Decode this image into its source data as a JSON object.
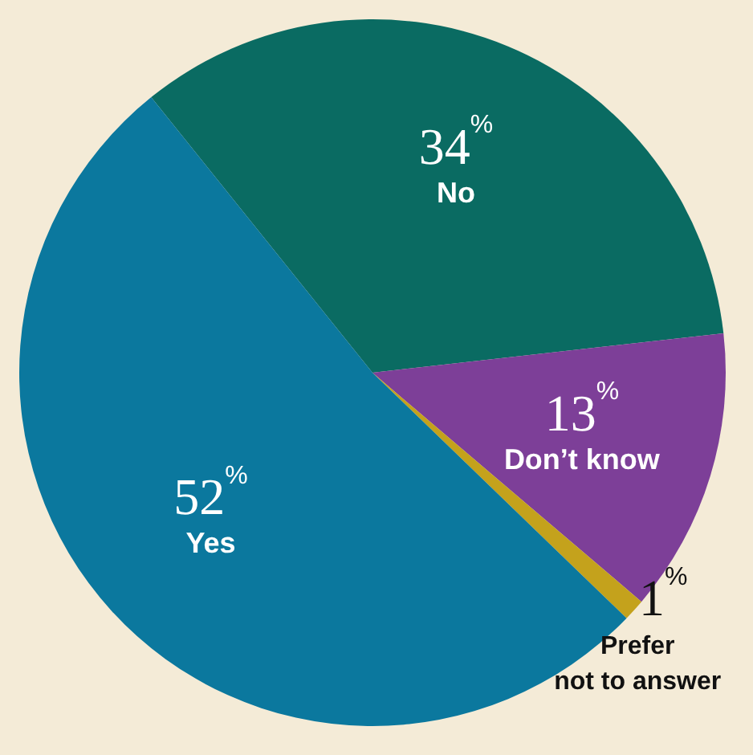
{
  "chart_data": {
    "type": "pie",
    "categories": [
      "No",
      "Don’t know",
      "Prefer not to answer",
      "Yes"
    ],
    "values": [
      34,
      13,
      1,
      52
    ],
    "colors": [
      "#0a6b62",
      "#7d3f98",
      "#c4a21c",
      "#0b789e"
    ],
    "value_labels": [
      "34$^{%}$",
      "13$^{%}$",
      "1$^{%}$",
      "52$^{%}$"
    ]
  }
}
